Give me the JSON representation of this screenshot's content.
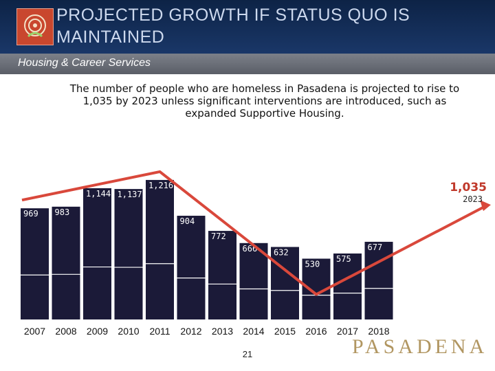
{
  "header": {
    "title": "PROJECTED GROWTH IF STATUS QUO IS MAINTAINED",
    "subtitle": "Housing & Career Services"
  },
  "description": "The number of people who are homeless in Pasadena is projected to rise to 1,035 by 2023 unless significant interventions are introduced, such as expanded Supportive Housing.",
  "chart_data": {
    "type": "bar",
    "categories": [
      "2007",
      "2008",
      "2009",
      "2010",
      "2011",
      "2012",
      "2013",
      "2014",
      "2015",
      "2016",
      "2017",
      "2018"
    ],
    "values": [
      969,
      983,
      1144,
      1137,
      1216,
      904,
      772,
      666,
      632,
      530,
      575,
      677
    ],
    "data_labels": [
      "969",
      "983",
      "1,144",
      "1,137",
      "1,216",
      "904",
      "772",
      "666",
      "632",
      "530",
      "575",
      "677"
    ],
    "projection": {
      "year": "2023",
      "value": 1035,
      "label": "1,035"
    },
    "bar_color": "#1b1a38",
    "line_color": "#d9483b",
    "projection_color": "#c0392b",
    "title": "",
    "xlabel": "",
    "ylabel": ""
  },
  "footer": {
    "page_number": "21",
    "brand": "PASADENA"
  }
}
